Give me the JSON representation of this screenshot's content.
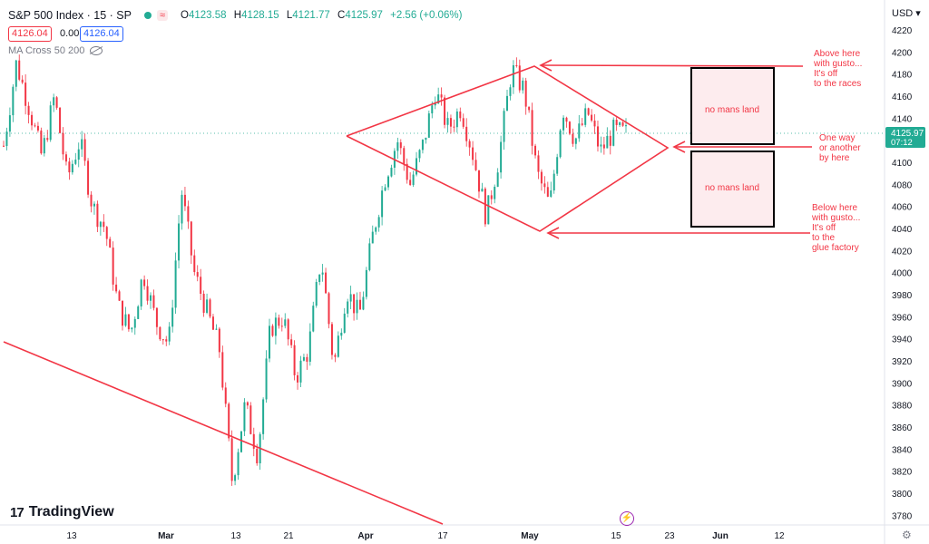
{
  "header": {
    "title": "S&P 500 Index · 15 · SP",
    "open_label": "O",
    "open": "4123.58",
    "high_label": "H",
    "high": "4128.15",
    "low_label": "L",
    "low": "4121.77",
    "close_label": "C",
    "close": "4125.97",
    "change": "+2.56 (+0.06%)",
    "bid": "4126.04",
    "spread": "0.00",
    "ask": "4126.04",
    "indicator": "MA Cross 50 200",
    "currency": "USD"
  },
  "brand": {
    "name": "TradingView",
    "mark": "17"
  },
  "colors": {
    "up": "#22ab94",
    "down": "#f23645",
    "annotation": "#f23645",
    "zone_fill": "#fdecee",
    "axis_text": "#131722"
  },
  "chart_data": {
    "type": "candlestick",
    "title": "S&P 500 Index · 15 · SP",
    "y_axis": {
      "ticks": [
        4220,
        4200,
        4180,
        4160,
        4140,
        4120,
        4100,
        4080,
        4060,
        4040,
        4020,
        4000,
        3980,
        3960,
        3940,
        3920,
        3900,
        3880,
        3860,
        3840,
        3820,
        3800,
        3780
      ],
      "range": [
        3770,
        4232
      ]
    },
    "x_axis": {
      "ticks": [
        "13",
        "Mar",
        "13",
        "21",
        "Apr",
        "17",
        "May",
        "15",
        "23",
        "Jun",
        "12"
      ]
    },
    "last_price": "4125.97",
    "countdown": "07:12",
    "price_path": [
      4115,
      4190,
      4150,
      4105,
      4160,
      4085,
      4120,
      4060,
      4040,
      3970,
      3945,
      4000,
      3955,
      3935,
      4075,
      4000,
      3965,
      3930,
      3810,
      3880,
      3835,
      3950,
      3960,
      3905,
      3930,
      4015,
      3915,
      3985,
      3960,
      4030,
      4085,
      4120,
      4080,
      4115,
      4165,
      4130,
      4150,
      4105,
      4050,
      4105,
      4185,
      4165,
      4090,
      4060,
      4150,
      4120,
      4145,
      4110,
      4128,
      4125.97
    ],
    "annotations": [
      {
        "text": "Above here with gusto... It's off to the races"
      },
      {
        "text": "One way or another by here"
      },
      {
        "text": "Below here with gusto... It's off to the glue factory"
      },
      {
        "text": "no mans land"
      },
      {
        "text": "no mans land"
      }
    ]
  }
}
